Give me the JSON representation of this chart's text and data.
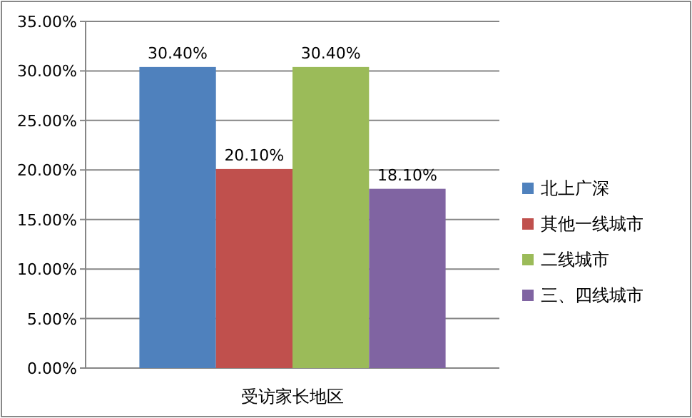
{
  "chart_data": {
    "type": "bar",
    "xlabel": "受访家长地区",
    "categories": [
      null
    ],
    "series": [
      {
        "name": "北上广深",
        "color": "#4f81bd",
        "values": [
          30.4
        ],
        "value_labels": [
          "30.40%"
        ]
      },
      {
        "name": "其他一线城市",
        "color": "#c0504d",
        "values": [
          20.1
        ],
        "value_labels": [
          "20.10%"
        ]
      },
      {
        "name": "二线城市",
        "color": "#9bbb59",
        "values": [
          30.4
        ],
        "value_labels": [
          "30.40%"
        ]
      },
      {
        "name": "三、四线城市",
        "color": "#8064a2",
        "values": [
          18.1
        ],
        "value_labels": [
          "18.10%"
        ]
      }
    ],
    "ylim": [
      0,
      35
    ],
    "yticks": [
      {
        "value": 0,
        "label": "0.00%"
      },
      {
        "value": 5,
        "label": "5.00%"
      },
      {
        "value": 10,
        "label": "10.00%"
      },
      {
        "value": 15,
        "label": "15.00%"
      },
      {
        "value": 20,
        "label": "20.00%"
      },
      {
        "value": 25,
        "label": "25.00%"
      },
      {
        "value": 30,
        "label": "30.00%"
      },
      {
        "value": 35,
        "label": "35.00%"
      }
    ],
    "grid": "y",
    "legend": "right"
  }
}
